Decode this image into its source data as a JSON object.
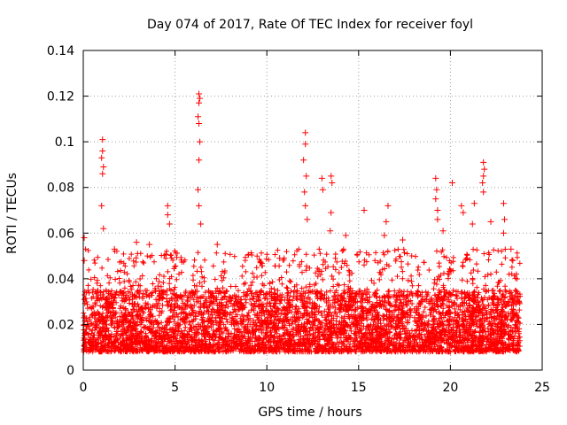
{
  "chart_data": {
    "type": "scatter",
    "title": "Day 074 of 2017, Rate Of TEC Index for receiver foyl",
    "xlabel": "GPS time / hours",
    "ylabel": "ROTI / TECUs",
    "xlim": [
      0,
      25
    ],
    "ylim": [
      0,
      0.14
    ],
    "x_ticks": [
      0,
      5,
      10,
      15,
      20,
      25
    ],
    "y_ticks": [
      0,
      0.02,
      0.04,
      0.06,
      0.08,
      0.1,
      0.12,
      0.14
    ],
    "x_tick_labels": [
      "0",
      "5",
      "10",
      "15",
      "20",
      "25"
    ],
    "y_tick_labels": [
      "0",
      "0.02",
      "0.04",
      "0.06",
      "0.08",
      "0.1",
      "0.12",
      "0.14"
    ],
    "grid": true,
    "marker": "+",
    "series_color": "#ff0000",
    "data_range_x": [
      0,
      23.8
    ],
    "baseline_band": [
      0.008,
      0.035
    ],
    "spikes": [
      {
        "x": 0.05,
        "y": 0.058
      },
      {
        "x": 0.05,
        "y": 0.048
      },
      {
        "x": 1.05,
        "y": 0.101
      },
      {
        "x": 1.05,
        "y": 0.096
      },
      {
        "x": 1.0,
        "y": 0.093
      },
      {
        "x": 1.1,
        "y": 0.089
      },
      {
        "x": 1.05,
        "y": 0.086
      },
      {
        "x": 1.0,
        "y": 0.072
      },
      {
        "x": 1.1,
        "y": 0.062
      },
      {
        "x": 1.7,
        "y": 0.053
      },
      {
        "x": 2.9,
        "y": 0.056
      },
      {
        "x": 3.6,
        "y": 0.055
      },
      {
        "x": 4.6,
        "y": 0.072
      },
      {
        "x": 4.6,
        "y": 0.068
      },
      {
        "x": 4.7,
        "y": 0.064
      },
      {
        "x": 6.3,
        "y": 0.121
      },
      {
        "x": 6.35,
        "y": 0.119
      },
      {
        "x": 6.3,
        "y": 0.117
      },
      {
        "x": 6.25,
        "y": 0.111
      },
      {
        "x": 6.3,
        "y": 0.108
      },
      {
        "x": 6.35,
        "y": 0.1
      },
      {
        "x": 6.3,
        "y": 0.092
      },
      {
        "x": 6.25,
        "y": 0.079
      },
      {
        "x": 6.3,
        "y": 0.072
      },
      {
        "x": 6.4,
        "y": 0.064
      },
      {
        "x": 7.3,
        "y": 0.055
      },
      {
        "x": 10.7,
        "y": 0.049
      },
      {
        "x": 12.1,
        "y": 0.104
      },
      {
        "x": 12.1,
        "y": 0.099
      },
      {
        "x": 12.0,
        "y": 0.092
      },
      {
        "x": 12.15,
        "y": 0.085
      },
      {
        "x": 12.05,
        "y": 0.078
      },
      {
        "x": 12.1,
        "y": 0.072
      },
      {
        "x": 12.2,
        "y": 0.066
      },
      {
        "x": 13.0,
        "y": 0.084
      },
      {
        "x": 13.05,
        "y": 0.079
      },
      {
        "x": 13.5,
        "y": 0.085
      },
      {
        "x": 13.55,
        "y": 0.082
      },
      {
        "x": 13.5,
        "y": 0.069
      },
      {
        "x": 13.45,
        "y": 0.061
      },
      {
        "x": 14.3,
        "y": 0.059
      },
      {
        "x": 15.3,
        "y": 0.07
      },
      {
        "x": 16.6,
        "y": 0.072
      },
      {
        "x": 16.5,
        "y": 0.065
      },
      {
        "x": 16.4,
        "y": 0.059
      },
      {
        "x": 17.4,
        "y": 0.057
      },
      {
        "x": 19.2,
        "y": 0.084
      },
      {
        "x": 19.25,
        "y": 0.079
      },
      {
        "x": 19.2,
        "y": 0.075
      },
      {
        "x": 19.3,
        "y": 0.07
      },
      {
        "x": 19.3,
        "y": 0.066
      },
      {
        "x": 19.6,
        "y": 0.061
      },
      {
        "x": 20.1,
        "y": 0.082
      },
      {
        "x": 20.6,
        "y": 0.072
      },
      {
        "x": 20.7,
        "y": 0.069
      },
      {
        "x": 21.3,
        "y": 0.073
      },
      {
        "x": 21.2,
        "y": 0.064
      },
      {
        "x": 21.8,
        "y": 0.091
      },
      {
        "x": 21.85,
        "y": 0.088
      },
      {
        "x": 21.8,
        "y": 0.085
      },
      {
        "x": 21.75,
        "y": 0.082
      },
      {
        "x": 21.8,
        "y": 0.078
      },
      {
        "x": 22.2,
        "y": 0.065
      },
      {
        "x": 22.9,
        "y": 0.073
      },
      {
        "x": 22.95,
        "y": 0.066
      },
      {
        "x": 22.9,
        "y": 0.06
      },
      {
        "x": 23.3,
        "y": 0.053
      },
      {
        "x": 23.4,
        "y": 0.048
      }
    ]
  }
}
